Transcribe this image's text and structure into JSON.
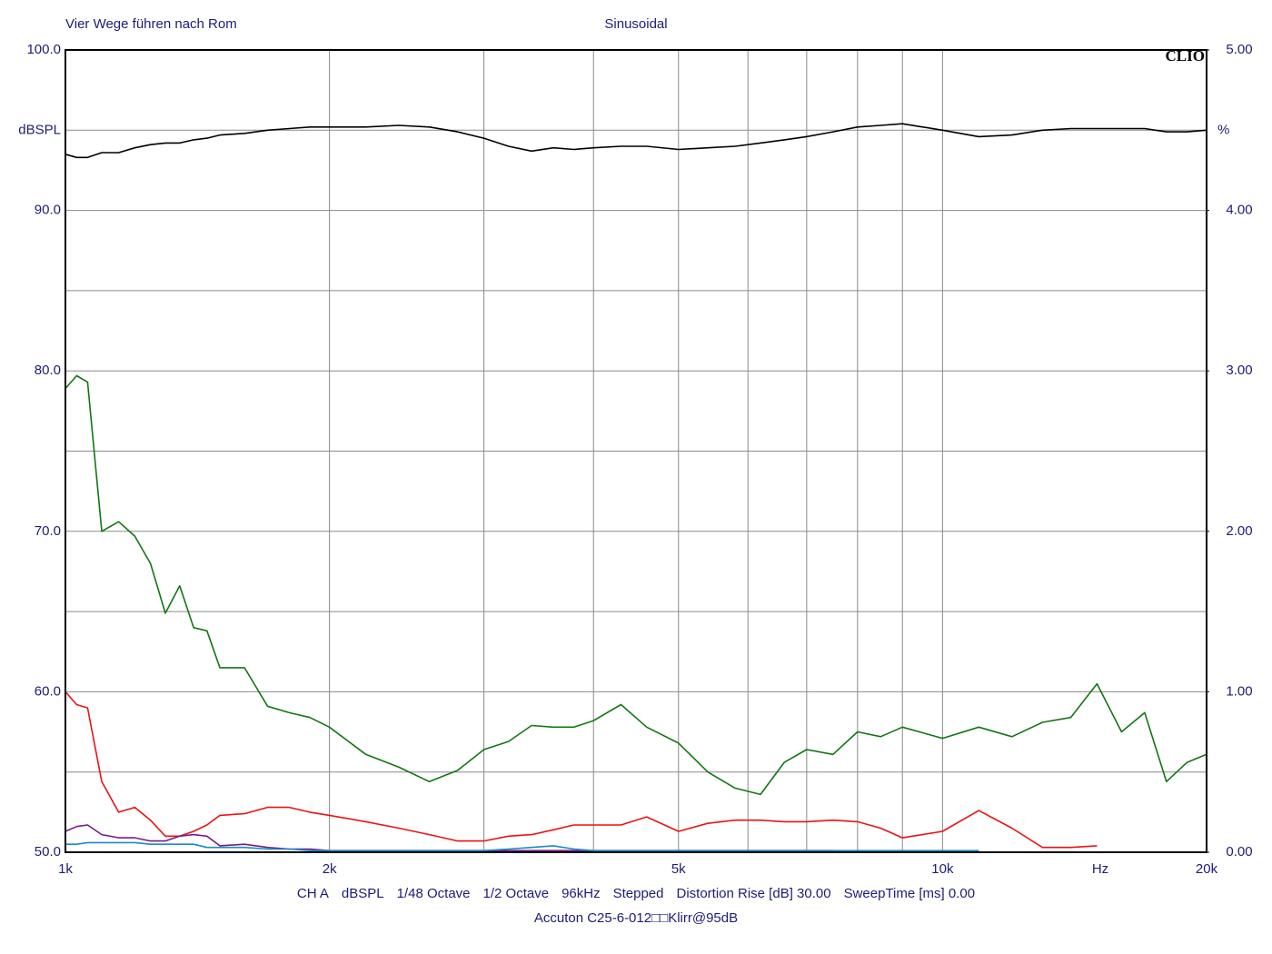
{
  "chart_data": {
    "type": "line",
    "title": "Vier Wege führen nach Rom",
    "subtitle": "Sinusoidal",
    "brand": "CLIO",
    "ylabel": "dBSPL",
    "y2label": "%",
    "xlabel": "Hz",
    "log_x": true,
    "grid": true,
    "xlim": [
      1000,
      20000
    ],
    "xticks": [
      {
        "value": 1000,
        "label": "1k"
      },
      {
        "value": 2000,
        "label": "2k"
      },
      {
        "value": 5000,
        "label": "5k"
      },
      {
        "value": 10000,
        "label": "10k"
      },
      {
        "value": 20000,
        "label": "20k"
      }
    ],
    "minor_xticks": [
      3000,
      4000,
      6000,
      7000,
      8000,
      9000
    ],
    "ylim": [
      50,
      100
    ],
    "yticks": [
      {
        "value": 50,
        "label": "50.0"
      },
      {
        "value": 60,
        "label": "60.0"
      },
      {
        "value": 70,
        "label": "70.0"
      },
      {
        "value": 80,
        "label": "80.0"
      },
      {
        "value": 90,
        "label": "90.0"
      },
      {
        "value": 100,
        "label": "100.0"
      }
    ],
    "minor_yticks": [
      55,
      65,
      75,
      85,
      95
    ],
    "y2lim": [
      0,
      5
    ],
    "y2ticks": [
      {
        "value": 0,
        "label": "0.00"
      },
      {
        "value": 1,
        "label": "1.00"
      },
      {
        "value": 2,
        "label": "2.00"
      },
      {
        "value": 3,
        "label": "3.00"
      },
      {
        "value": 4,
        "label": "4.00"
      },
      {
        "value": 5,
        "label": "5.00"
      }
    ],
    "x": [
      1000,
      1030,
      1060,
      1100,
      1150,
      1200,
      1250,
      1300,
      1350,
      1400,
      1450,
      1500,
      1600,
      1700,
      1800,
      1900,
      2000,
      2200,
      2400,
      2600,
      2800,
      3000,
      3200,
      3400,
      3600,
      3800,
      4000,
      4300,
      4600,
      5000,
      5400,
      5800,
      6200,
      6600,
      7000,
      7500,
      8000,
      8500,
      9000,
      10000,
      11000,
      12000,
      13000,
      14000,
      15000,
      16000,
      17000,
      18000,
      19000,
      20000
    ],
    "series": [
      {
        "color": "#000000",
        "values": [
          93.5,
          93.3,
          93.3,
          93.6,
          93.6,
          93.9,
          94.1,
          94.2,
          94.2,
          94.4,
          94.5,
          94.7,
          94.8,
          95.0,
          95.1,
          95.2,
          95.2,
          95.2,
          95.3,
          95.2,
          94.9,
          94.5,
          94.0,
          93.7,
          93.9,
          93.8,
          93.9,
          94.0,
          94.0,
          93.8,
          93.9,
          94.0,
          94.2,
          94.4,
          94.6,
          94.9,
          95.2,
          95.3,
          95.4,
          95.0,
          94.6,
          94.7,
          95.0,
          95.1,
          95.1,
          95.1,
          95.1,
          94.9,
          94.9,
          95.0
        ]
      },
      {
        "color": "#117711",
        "values": [
          78.9,
          79.7,
          79.3,
          70.0,
          70.6,
          69.7,
          68.0,
          64.9,
          66.6,
          64.0,
          63.8,
          61.5,
          61.5,
          59.1,
          58.7,
          58.4,
          57.8,
          56.1,
          55.3,
          54.4,
          55.1,
          56.4,
          56.9,
          57.9,
          57.8,
          57.8,
          58.2,
          59.2,
          57.8,
          56.8,
          55.0,
          54.0,
          53.6,
          55.6,
          56.4,
          56.1,
          57.5,
          57.2,
          57.8,
          57.1,
          57.8,
          57.2,
          58.1,
          58.4,
          60.5,
          57.5,
          58.7,
          54.4,
          55.6,
          56.1
        ]
      },
      {
        "color": "#ee1111",
        "values": [
          60.0,
          59.2,
          59.0,
          54.4,
          52.5,
          52.8,
          52.0,
          51.0,
          51.0,
          51.3,
          51.7,
          52.3,
          52.4,
          52.8,
          52.8,
          52.5,
          52.3,
          51.9,
          51.5,
          51.1,
          50.7,
          50.7,
          51.0,
          51.1,
          51.4,
          51.7,
          51.7,
          51.7,
          52.2,
          51.3,
          51.8,
          52.0,
          52.0,
          51.9,
          51.9,
          52.0,
          51.9,
          51.5,
          50.9,
          51.3,
          52.6,
          51.5,
          50.3,
          50.3,
          50.4,
          null,
          null,
          null,
          null,
          null
        ]
      },
      {
        "color": "#7a1a8a",
        "values": [
          51.3,
          51.6,
          51.7,
          51.1,
          50.9,
          50.9,
          50.7,
          50.7,
          51.0,
          51.1,
          51.0,
          50.4,
          50.5,
          50.3,
          50.2,
          50.2,
          50.1,
          50.1,
          50.1,
          50.1,
          50.1,
          50.1,
          50.1,
          50.1,
          50.1,
          50.1,
          50.1,
          50.1,
          50.1,
          50.1,
          50.1,
          50.1,
          50.1,
          50.1,
          50.1,
          50.1,
          null,
          null,
          null,
          null,
          null,
          null,
          null,
          null,
          null,
          null,
          null,
          null,
          null,
          null
        ]
      },
      {
        "color": "#1a8ac8",
        "values": [
          50.5,
          50.5,
          50.6,
          50.6,
          50.6,
          50.6,
          50.5,
          50.5,
          50.5,
          50.5,
          50.3,
          50.3,
          50.3,
          50.2,
          50.2,
          50.1,
          50.1,
          50.1,
          50.1,
          50.1,
          50.1,
          50.1,
          50.2,
          50.3,
          50.4,
          50.2,
          50.1,
          50.1,
          50.1,
          50.1,
          50.1,
          50.1,
          50.1,
          50.1,
          50.1,
          50.1,
          50.1,
          50.1,
          50.1,
          50.1,
          50.1,
          null,
          null,
          null,
          null,
          null,
          null,
          null,
          null,
          null
        ]
      }
    ],
    "settings": [
      "CH A",
      "dBSPL",
      "1/48 Octave",
      "1/2 Octave",
      "96kHz",
      "Stepped",
      "Distortion Rise [dB] 30.00",
      "SweepTime [ms] 0.00"
    ],
    "caption": "Accuton C25-6-012□□Klirr@95dB"
  }
}
